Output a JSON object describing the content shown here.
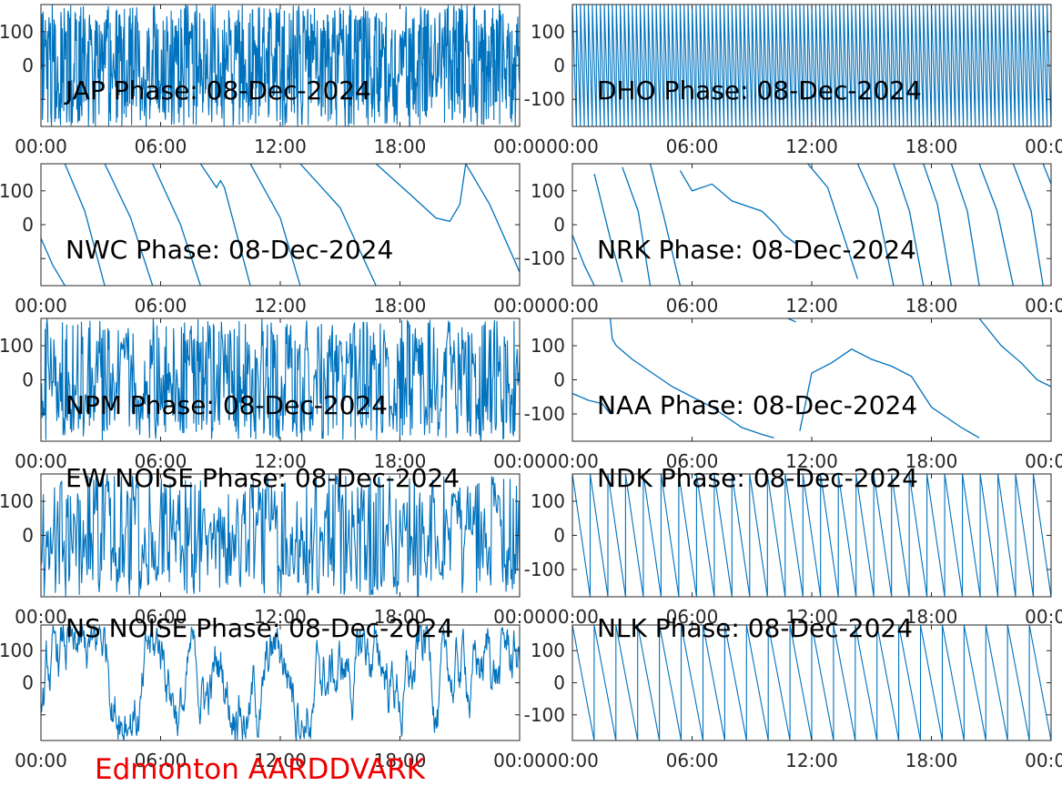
{
  "figure": {
    "footer_label": "Edmonton AARDDVARK",
    "footer_color": "#ee0000",
    "line_color": "#0072bd"
  },
  "chart_data": [
    {
      "type": "line",
      "station": "JAP",
      "title": "JAP Phase: 08-Dec-2024",
      "x_ticks": [
        "00:00",
        "06:00",
        "12:00",
        "18:00",
        "00:00"
      ],
      "y_ticks": [
        100,
        0,
        -100
      ],
      "y_tick_labels": [
        "100",
        "0",
        ""
      ],
      "xlim": [
        0,
        24
      ],
      "ylim": [
        -180,
        180
      ],
      "pattern": "noise_wraps",
      "wrap_segments": 220,
      "series": [
        {
          "x": [
            0,
            24
          ],
          "y": [
            -180,
            180
          ]
        }
      ]
    },
    {
      "type": "line",
      "station": "DHO",
      "title": "DHO Phase: 08-Dec-2024",
      "x_ticks": [
        "00:00",
        "06:00",
        "12:00",
        "18:00",
        "00:00"
      ],
      "y_ticks": [
        100,
        0,
        -100
      ],
      "y_tick_labels": [
        "100",
        "0",
        "-100"
      ],
      "xlim": [
        0,
        24
      ],
      "ylim": [
        -180,
        180
      ],
      "pattern": "fast_wraps",
      "wrap_segments": 120,
      "series": [
        {
          "x": [
            0,
            24
          ],
          "y": [
            180,
            -180
          ]
        }
      ]
    },
    {
      "type": "line",
      "station": "NWC",
      "title": "NWC Phase: 08-Dec-2024",
      "x_ticks": [
        "00:00",
        "06:00",
        "12:00",
        "18:00",
        "00:00"
      ],
      "y_ticks": [
        100,
        0,
        -100
      ],
      "y_tick_labels": [
        "100",
        "0",
        ""
      ],
      "xlim": [
        0,
        24
      ],
      "ylim": [
        -180,
        180
      ],
      "pattern": "segments",
      "series": [
        {
          "x": [
            0,
            0.6,
            1.2
          ],
          "y": [
            -40,
            -120,
            -180
          ]
        },
        {
          "x": [
            1.2,
            2.2,
            3.2
          ],
          "y": [
            180,
            40,
            -180
          ]
        },
        {
          "x": [
            3.2,
            4.5,
            5.6
          ],
          "y": [
            180,
            20,
            -180
          ]
        },
        {
          "x": [
            5.6,
            7.0,
            8.0
          ],
          "y": [
            180,
            0,
            -180
          ]
        },
        {
          "x": [
            8.0,
            8.8,
            9.0,
            9.2,
            10.5
          ],
          "y": [
            180,
            110,
            130,
            110,
            -180
          ]
        },
        {
          "x": [
            10.5,
            12.0,
            13.0
          ],
          "y": [
            180,
            20,
            -180
          ]
        },
        {
          "x": [
            13.0,
            15.0,
            16.8
          ],
          "y": [
            180,
            50,
            -180
          ]
        },
        {
          "x": [
            16.8,
            18.5,
            19.8,
            20.5,
            21.0,
            21.3
          ],
          "y": [
            180,
            90,
            20,
            10,
            60,
            180
          ]
        },
        {
          "x": [
            21.3,
            22.5,
            23.4,
            24.0
          ],
          "y": [
            180,
            60,
            -60,
            -140
          ]
        }
      ]
    },
    {
      "type": "line",
      "station": "NRK",
      "title": "NRK Phase: 08-Dec-2024",
      "x_ticks": [
        "00:00",
        "06:00",
        "12:00",
        "18:00",
        "00:00"
      ],
      "y_ticks": [
        100,
        0,
        -100
      ],
      "y_tick_labels": [
        "100",
        "0",
        "-100"
      ],
      "xlim": [
        0,
        24
      ],
      "ylim": [
        -180,
        180
      ],
      "pattern": "segments",
      "series": [
        {
          "x": [
            0,
            0.6,
            1.1
          ],
          "y": [
            -30,
            -120,
            -180
          ]
        },
        {
          "x": [
            1.1,
            1.9,
            2.5
          ],
          "y": [
            150,
            -40,
            -170
          ]
        },
        {
          "x": [
            2.5,
            3.3,
            3.9
          ],
          "y": [
            170,
            40,
            -180
          ]
        },
        {
          "x": [
            3.9,
            4.6,
            5.4
          ],
          "y": [
            180,
            20,
            -180
          ]
        },
        {
          "x": [
            5.4,
            6.0,
            7.0,
            8.0,
            9.5,
            10.2,
            10.6,
            11.3
          ],
          "y": [
            160,
            100,
            120,
            70,
            40,
            0,
            -30,
            -60
          ]
        },
        {
          "x": [
            11.8,
            12.8,
            14.3
          ],
          "y": [
            180,
            110,
            -160
          ]
        },
        {
          "x": [
            14.3,
            15.3,
            16.1
          ],
          "y": [
            180,
            50,
            -180
          ]
        },
        {
          "x": [
            16.1,
            16.9,
            17.6
          ],
          "y": [
            180,
            40,
            -180
          ]
        },
        {
          "x": [
            17.6,
            18.3,
            19.0
          ],
          "y": [
            180,
            60,
            -180
          ]
        },
        {
          "x": [
            19.0,
            19.8,
            20.4
          ],
          "y": [
            180,
            40,
            -180
          ]
        },
        {
          "x": [
            20.4,
            21.3,
            22.1
          ],
          "y": [
            180,
            40,
            -180
          ]
        },
        {
          "x": [
            22.1,
            23.0,
            23.6
          ],
          "y": [
            180,
            40,
            -180
          ]
        },
        {
          "x": [
            23.6,
            24.0
          ],
          "y": [
            180,
            120
          ]
        }
      ]
    },
    {
      "type": "line",
      "station": "NPM",
      "title": "NPM Phase: 08-Dec-2024",
      "x_ticks": [
        "00:00",
        "06:00",
        "12:00",
        "18:00",
        "00:00"
      ],
      "y_ticks": [
        100,
        0,
        -100
      ],
      "y_tick_labels": [
        "100",
        "0",
        ""
      ],
      "xlim": [
        0,
        24
      ],
      "ylim": [
        -180,
        180
      ],
      "pattern": "noise_wraps",
      "wrap_segments": 130,
      "series": [
        {
          "x": [
            0,
            24
          ],
          "y": [
            -180,
            180
          ]
        }
      ]
    },
    {
      "type": "line",
      "station": "NAA",
      "title": "NAA Phase: 08-Dec-2024",
      "x_ticks": [
        "00:00",
        "06:00",
        "12:00",
        "18:00",
        "00:00"
      ],
      "y_ticks": [
        100,
        0,
        -100
      ],
      "y_tick_labels": [
        "100",
        "0",
        "-100"
      ],
      "xlim": [
        0,
        24
      ],
      "ylim": [
        -180,
        180
      ],
      "pattern": "segments",
      "series": [
        {
          "x": [
            0,
            0.8,
            1.5,
            1.9
          ],
          "y": [
            -40,
            -60,
            -70,
            -100
          ]
        },
        {
          "x": [
            1.9,
            2.0,
            2.2,
            3.0,
            5.0,
            7.0,
            8.5,
            9.5,
            10.1
          ],
          "y": [
            180,
            120,
            100,
            60,
            -20,
            -80,
            -140,
            -160,
            -170
          ]
        },
        {
          "x": [
            10.8,
            11.2
          ],
          "y": [
            180,
            170
          ]
        },
        {
          "x": [
            11.4,
            12.0,
            13.0,
            14.0,
            15.0,
            16.0,
            17.0,
            18.0,
            19.5,
            20.4
          ],
          "y": [
            -150,
            20,
            50,
            90,
            60,
            40,
            10,
            -80,
            -140,
            -170
          ]
        },
        {
          "x": [
            20.4,
            21.5,
            22.5,
            23.3,
            24.0
          ],
          "y": [
            180,
            100,
            50,
            0,
            -20
          ]
        }
      ]
    },
    {
      "type": "line",
      "station": "EW NOISE",
      "title": "EW NOISE Phase: 08-Dec-2024",
      "x_ticks": [
        "00:00",
        "06:00",
        "12:00",
        "18:00",
        "00:00"
      ],
      "y_ticks": [
        100,
        0,
        -100
      ],
      "y_tick_labels": [
        "100",
        "0",
        ""
      ],
      "xlim": [
        0,
        24
      ],
      "ylim": [
        -180,
        180
      ],
      "pattern": "noise_wraps",
      "wrap_segments": 100,
      "series": [
        {
          "x": [
            0,
            24
          ],
          "y": [
            -180,
            180
          ]
        }
      ]
    },
    {
      "type": "line",
      "station": "NDK",
      "title": "NDK Phase: 08-Dec-2024",
      "x_ticks": [
        "00:00",
        "06:00",
        "12:00",
        "18:00",
        "00:00"
      ],
      "y_ticks": [
        100,
        0,
        -100
      ],
      "y_tick_labels": [
        "100",
        "0",
        "-100"
      ],
      "xlim": [
        0,
        24
      ],
      "ylim": [
        -180,
        180
      ],
      "pattern": "sawtooth",
      "wrap_segments": 27,
      "series": [
        {
          "x": [
            0,
            24
          ],
          "y": [
            180,
            -180
          ]
        }
      ]
    },
    {
      "type": "line",
      "station": "NS NOISE",
      "title": "NS NOISE Phase: 08-Dec-2024",
      "x_ticks": [
        "00:00",
        "06:00",
        "12:00",
        "18:00",
        "00:00"
      ],
      "y_ticks": [
        100,
        0,
        -100
      ],
      "y_tick_labels": [
        "100",
        "0",
        ""
      ],
      "xlim": [
        0,
        24
      ],
      "ylim": [
        -180,
        180
      ],
      "pattern": "noise",
      "wrap_segments": 60,
      "series": [
        {
          "x": [
            0,
            24
          ],
          "y": [
            -180,
            180
          ]
        }
      ]
    },
    {
      "type": "line",
      "station": "NLK",
      "title": "NLK Phase: 08-Dec-2024",
      "x_ticks": [
        "00:00",
        "06:00",
        "12:00",
        "18:00",
        "00:00"
      ],
      "y_ticks": [
        100,
        0,
        -100
      ],
      "y_tick_labels": [
        "100",
        "0",
        "-100"
      ],
      "xlim": [
        0,
        24
      ],
      "ylim": [
        -180,
        180
      ],
      "pattern": "sawtooth",
      "wrap_segments": 22,
      "series": [
        {
          "x": [
            0,
            24
          ],
          "y": [
            180,
            -180
          ]
        }
      ]
    }
  ]
}
